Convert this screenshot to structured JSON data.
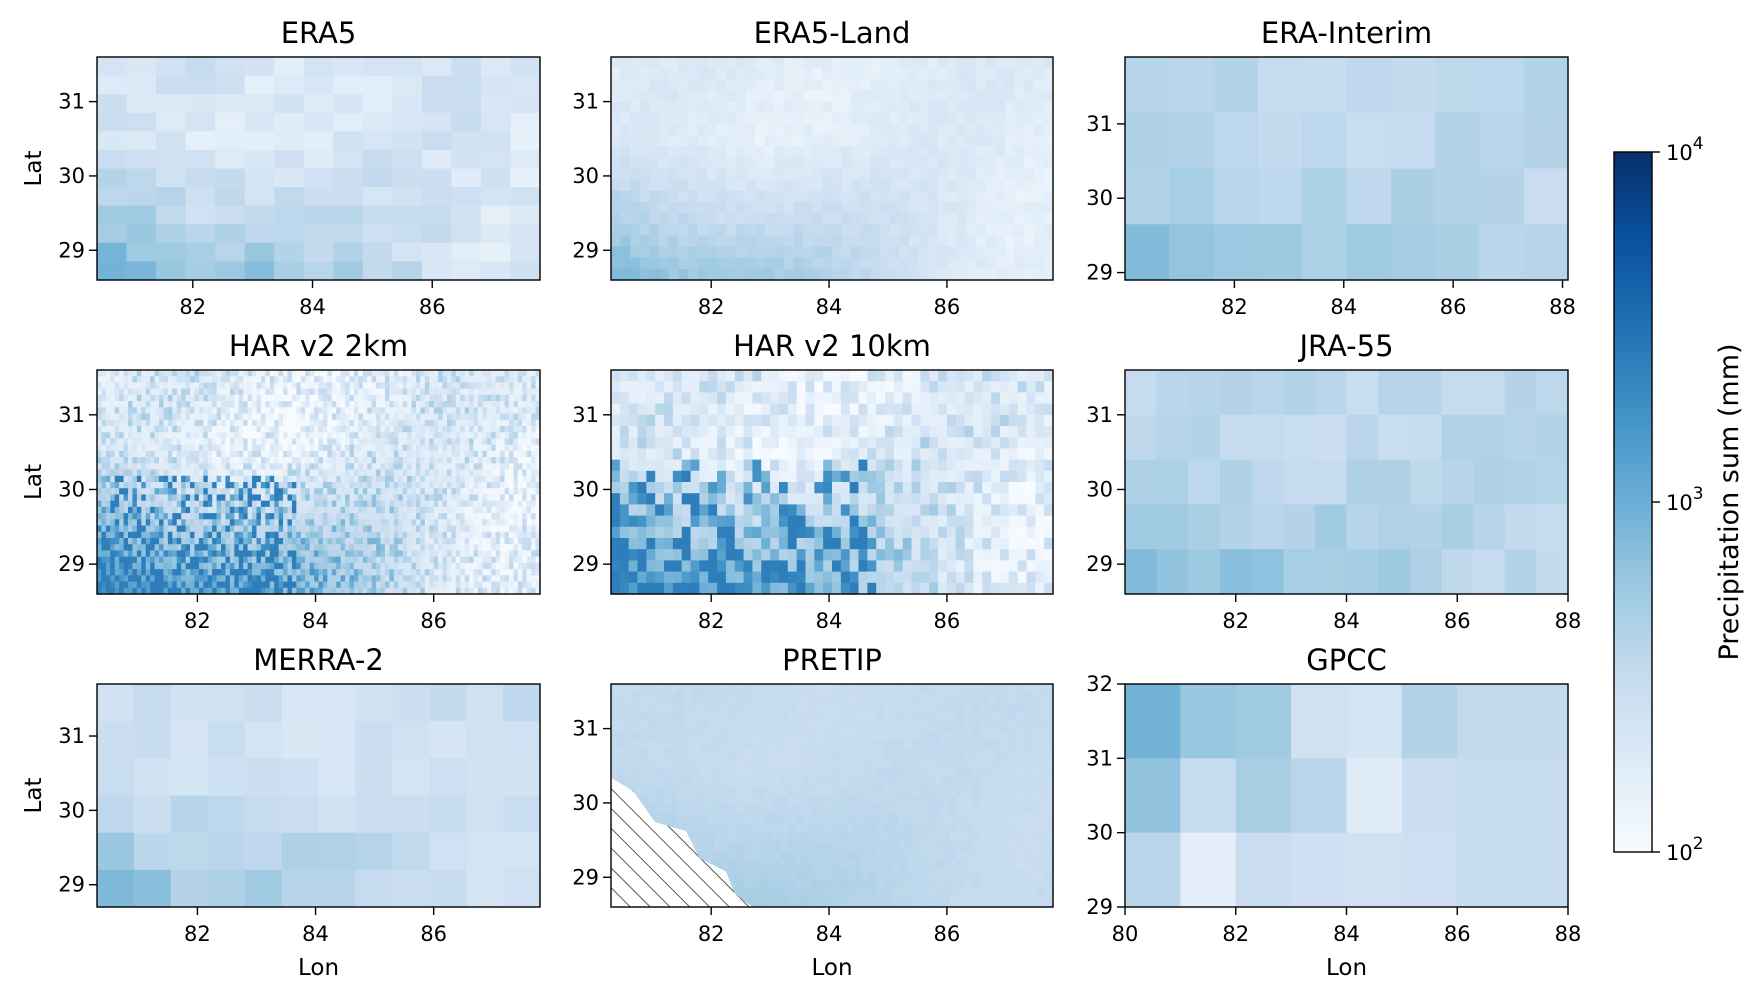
{
  "figure": {
    "colorbar": {
      "label": "Precipitation sum (mm)",
      "scale": "log",
      "range": [
        100,
        10000
      ],
      "colormap": "Blues",
      "ticks": [
        {
          "base": "10",
          "exp": "4",
          "value": 10000
        },
        {
          "base": "10",
          "exp": "3",
          "value": 1000
        },
        {
          "base": "10",
          "exp": "2",
          "value": 100
        }
      ]
    }
  },
  "chart_data": [
    {
      "type": "heatmap",
      "title": "ERA5",
      "xlabel": "",
      "ylabel": "Lat",
      "xlim": [
        80.4,
        87.8
      ],
      "ylim": [
        28.6,
        31.6
      ],
      "xticks": [
        "82",
        "84",
        "86"
      ],
      "yticks": [
        "29",
        "30",
        "31"
      ],
      "grid": [
        15,
        12
      ],
      "values_scale": [
        150,
        900
      ],
      "texture": "blocky"
    },
    {
      "type": "heatmap",
      "title": "ERA5-Land",
      "xlabel": "",
      "ylabel": "",
      "xlim": [
        80.3,
        87.8
      ],
      "ylim": [
        28.6,
        31.6
      ],
      "xticks": [
        "82",
        "84",
        "86"
      ],
      "yticks": [
        "29",
        "30",
        "31"
      ],
      "grid": [
        46,
        20
      ],
      "values_scale": [
        150,
        900
      ],
      "texture": "smooth"
    },
    {
      "type": "heatmap",
      "title": "ERA-Interim",
      "xlabel": "",
      "ylabel": "",
      "xlim": [
        80.0,
        88.1
      ],
      "ylim": [
        28.9,
        31.9
      ],
      "xticks": [
        "82",
        "84",
        "86",
        "88"
      ],
      "yticks": [
        "29",
        "30",
        "31"
      ],
      "grid": [
        10,
        4
      ],
      "values_scale": [
        300,
        800
      ],
      "texture": "blocky"
    },
    {
      "type": "heatmap",
      "title": "HAR v2 2km",
      "xlabel": "",
      "ylabel": "Lat",
      "xlim": [
        80.3,
        87.8
      ],
      "ylim": [
        28.6,
        31.6
      ],
      "xticks": [
        "82",
        "84",
        "86"
      ],
      "yticks": [
        "29",
        "30",
        "31"
      ],
      "grid": [
        100,
        36
      ],
      "values_scale": [
        120,
        2500
      ],
      "texture": "fine"
    },
    {
      "type": "heatmap",
      "title": "HAR v2 10km",
      "xlabel": "",
      "ylabel": "",
      "xlim": [
        80.3,
        87.8
      ],
      "ylim": [
        28.6,
        31.6
      ],
      "xticks": [
        "82",
        "84",
        "86"
      ],
      "yticks": [
        "29",
        "30",
        "31"
      ],
      "grid": [
        50,
        20
      ],
      "values_scale": [
        120,
        2500
      ],
      "texture": "medium"
    },
    {
      "type": "heatmap",
      "title": "JRA-55",
      "xlabel": "",
      "ylabel": "",
      "xlim": [
        80.0,
        88.0
      ],
      "ylim": [
        28.6,
        31.6
      ],
      "xticks": [
        "82",
        "84",
        "86",
        "88"
      ],
      "yticks": [
        "29",
        "30",
        "31"
      ],
      "grid": [
        14,
        5
      ],
      "values_scale": [
        300,
        900
      ],
      "texture": "blocky"
    },
    {
      "type": "heatmap",
      "title": "MERRA-2",
      "xlabel": "Lon",
      "ylabel": "Lat",
      "xlim": [
        80.3,
        87.8
      ],
      "ylim": [
        28.7,
        31.7
      ],
      "xticks": [
        "82",
        "84",
        "86"
      ],
      "yticks": [
        "29",
        "30",
        "31"
      ],
      "grid": [
        12,
        6
      ],
      "values_scale": [
        200,
        800
      ],
      "texture": "blocky"
    },
    {
      "type": "heatmap",
      "title": "PRETIP",
      "xlabel": "Lon",
      "ylabel": "",
      "xlim": [
        80.3,
        87.8
      ],
      "ylim": [
        28.6,
        31.6
      ],
      "xticks": [
        "82",
        "84",
        "86"
      ],
      "yticks": [
        "29",
        "30",
        "31"
      ],
      "grid": [
        60,
        24
      ],
      "values_scale": [
        300,
        600
      ],
      "texture": "smooth",
      "missing_region": "hatched"
    },
    {
      "type": "heatmap",
      "title": "GPCC",
      "xlabel": "Lon",
      "ylabel": "",
      "xlim": [
        80,
        88
      ],
      "ylim": [
        29,
        32
      ],
      "xticks": [
        "80",
        "82",
        "84",
        "86",
        "88"
      ],
      "yticks": [
        "29",
        "30",
        "31",
        "32"
      ],
      "grid": [
        8,
        3
      ],
      "values": [
        [
          900,
          600,
          550,
          250,
          230,
          420,
          330,
          330
        ],
        [
          650,
          300,
          480,
          370,
          170,
          280,
          300,
          300
        ],
        [
          380,
          160,
          280,
          260,
          250,
          270,
          300,
          300
        ]
      ]
    }
  ]
}
